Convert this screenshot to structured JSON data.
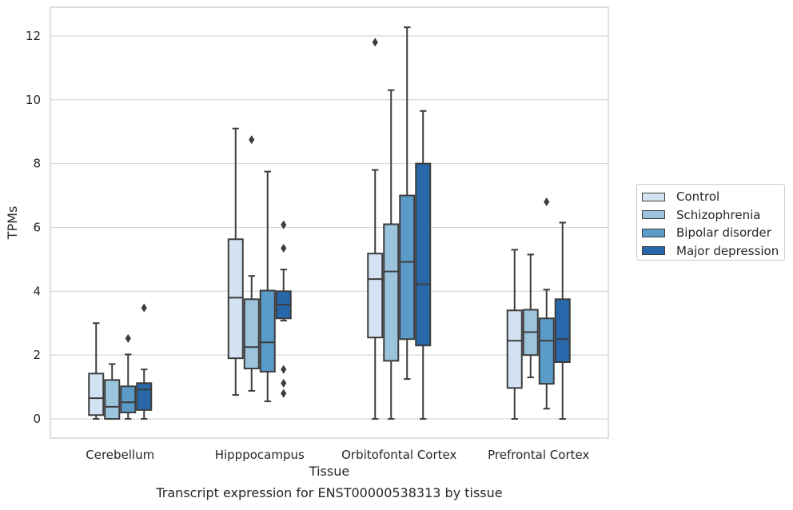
{
  "chart_data": {
    "type": "box",
    "title": "Transcript expression for ENST00000538313 by tissue",
    "xlabel": "Tissue",
    "ylabel": "TPMs",
    "ylim": [
      -0.6,
      12.9
    ],
    "yticks": [
      0,
      2,
      4,
      6,
      8,
      10,
      12
    ],
    "grid": "horizontal",
    "legend_position": "right",
    "categories": [
      "Cerebellum",
      "Hipppocampus",
      "Orbitofontal Cortex",
      "Prefrontal Cortex"
    ],
    "series": [
      {
        "name": "Control",
        "color": "#d4e3f3",
        "boxes": [
          {
            "whislo": 0.0,
            "q1": 0.12,
            "med": 0.65,
            "q3": 1.42,
            "whishi": 3.0,
            "fliers": []
          },
          {
            "whislo": 0.75,
            "q1": 1.9,
            "med": 3.8,
            "q3": 5.63,
            "whishi": 9.1,
            "fliers": []
          },
          {
            "whislo": 0.0,
            "q1": 2.55,
            "med": 4.38,
            "q3": 5.18,
            "whishi": 7.8,
            "fliers": [
              11.8
            ]
          },
          {
            "whislo": 0.0,
            "q1": 0.97,
            "med": 2.45,
            "q3": 3.4,
            "whishi": 5.3,
            "fliers": []
          }
        ]
      },
      {
        "name": "Schizophrenia",
        "color": "#9dc4dd",
        "boxes": [
          {
            "whislo": 0.0,
            "q1": 0.0,
            "med": 0.38,
            "q3": 1.22,
            "whishi": 1.72,
            "fliers": []
          },
          {
            "whislo": 0.88,
            "q1": 1.58,
            "med": 2.25,
            "q3": 3.75,
            "whishi": 4.48,
            "fliers": [
              8.75
            ]
          },
          {
            "whislo": 0.0,
            "q1": 1.82,
            "med": 4.62,
            "q3": 6.1,
            "whishi": 10.3,
            "fliers": []
          },
          {
            "whislo": 1.3,
            "q1": 2.0,
            "med": 2.72,
            "q3": 3.42,
            "whishi": 5.15,
            "fliers": []
          }
        ]
      },
      {
        "name": "Bipolar disorder",
        "color": "#5b9bc8",
        "boxes": [
          {
            "whislo": 0.0,
            "q1": 0.2,
            "med": 0.52,
            "q3": 1.02,
            "whishi": 2.02,
            "fliers": [
              2.52
            ]
          },
          {
            "whislo": 0.55,
            "q1": 1.48,
            "med": 2.4,
            "q3": 4.02,
            "whishi": 7.75,
            "fliers": []
          },
          {
            "whislo": 1.25,
            "q1": 2.5,
            "med": 4.92,
            "q3": 7.0,
            "whishi": 12.27,
            "fliers": []
          },
          {
            "whislo": 0.32,
            "q1": 1.1,
            "med": 2.45,
            "q3": 3.15,
            "whishi": 4.05,
            "fliers": [
              6.8
            ]
          }
        ]
      },
      {
        "name": "Major depression",
        "color": "#2867a9",
        "boxes": [
          {
            "whislo": 0.0,
            "q1": 0.28,
            "med": 0.92,
            "q3": 1.12,
            "whishi": 1.55,
            "fliers": [
              3.48
            ]
          },
          {
            "whislo": 3.08,
            "q1": 3.15,
            "med": 3.58,
            "q3": 4.0,
            "whishi": 4.68,
            "fliers": [
              6.08,
              5.35,
              1.55,
              1.12,
              0.8
            ]
          },
          {
            "whislo": 0.0,
            "q1": 2.3,
            "med": 4.22,
            "q3": 8.0,
            "whishi": 9.65,
            "fliers": []
          },
          {
            "whislo": 0.0,
            "q1": 1.78,
            "med": 2.5,
            "q3": 3.75,
            "whishi": 6.15,
            "fliers": []
          }
        ]
      }
    ]
  }
}
